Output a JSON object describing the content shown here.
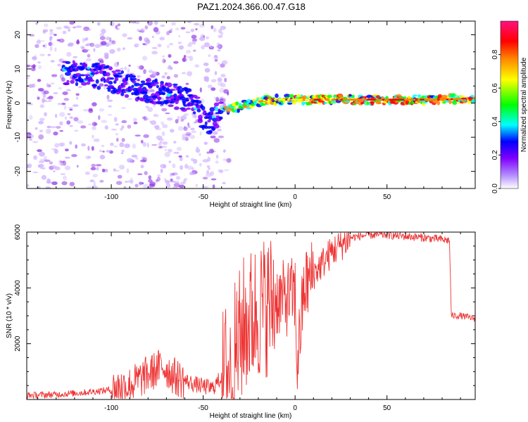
{
  "page": {
    "title": "PAZ1.2024.366.00.47.G18"
  },
  "chart_data": [
    {
      "type": "heatmap",
      "title": "PAZ1.2024.366.00.47.G18",
      "xlabel": "Height of straight line (km)",
      "ylabel": "Frequency (Hz)",
      "xlim": [
        -146,
        98
      ],
      "ylim": [
        -25,
        24
      ],
      "xticks": [
        -100,
        -50,
        0,
        50
      ],
      "yticks": [
        -20,
        -10,
        0,
        10,
        20
      ],
      "colorbar": {
        "label": "Normalized spectral amplitude",
        "ticks": [
          "0.0",
          "0.2",
          "0.4",
          "0.6",
          "0.8"
        ],
        "range": [
          0,
          1
        ],
        "colors": [
          "#ffffff",
          "#8000ff",
          "#0000ff",
          "#00ffff",
          "#00ff00",
          "#ffff00",
          "#ff8000",
          "#ff0000",
          "#ff0080"
        ]
      },
      "ridge": [
        {
          "x": -115,
          "y": 9
        },
        {
          "x": -100,
          "y": 7
        },
        {
          "x": -85,
          "y": 4
        },
        {
          "x": -70,
          "y": 3
        },
        {
          "x": -55,
          "y": 0
        },
        {
          "x": -48,
          "y": -6
        },
        {
          "x": -40,
          "y": -2
        },
        {
          "x": -30,
          "y": -1
        },
        {
          "x": -15,
          "y": 1
        },
        {
          "x": 0,
          "y": 1
        },
        {
          "x": 20,
          "y": 1
        },
        {
          "x": 50,
          "y": 1
        },
        {
          "x": 80,
          "y": 1
        },
        {
          "x": 98,
          "y": 1.5
        }
      ]
    },
    {
      "type": "line",
      "xlabel": "Height of straight line (km)",
      "ylabel": "SNR (10 * v/v)",
      "xlim": [
        -146,
        98
      ],
      "ylim": [
        0,
        6000
      ],
      "xticks": [
        -100,
        -50,
        0,
        50
      ],
      "yticks": [
        2000,
        4000,
        6000
      ],
      "color": "#ee3333",
      "series": [
        {
          "x": [
            -146,
            -130,
            -115,
            -100,
            -90,
            -80,
            -72,
            -65,
            -55,
            -45,
            -35,
            -28,
            -20,
            -15,
            -10,
            -5,
            0,
            1,
            5,
            10,
            20,
            30,
            40,
            50,
            60,
            70,
            78,
            84,
            85,
            90,
            98
          ],
          "values": [
            150,
            180,
            250,
            350,
            500,
            900,
            1200,
            800,
            550,
            400,
            1200,
            2600,
            3200,
            3400,
            3600,
            3600,
            3800,
            1200,
            4000,
            4500,
            5300,
            5800,
            5900,
            5900,
            5850,
            5800,
            5750,
            5700,
            3000,
            3000,
            2900
          ]
        }
      ]
    }
  ]
}
